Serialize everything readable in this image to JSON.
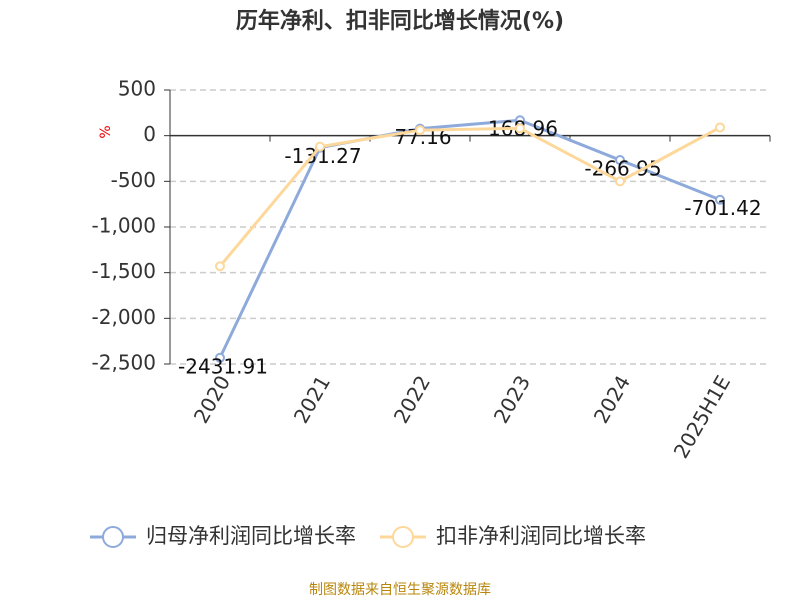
{
  "chart_data": {
    "type": "line",
    "title": "历年净利、扣非同比增长情况(%)",
    "y_label": "%",
    "categories": [
      "2020",
      "2021",
      "2022",
      "2023",
      "2024",
      "2025H1E"
    ],
    "series": [
      {
        "name": "归母净利润同比增长率",
        "color": "#8eaadb",
        "values": [
          -2431.91,
          -131.27,
          77.16,
          168.96,
          -266.95,
          -701.42
        ],
        "show_labels": true
      },
      {
        "name": "扣非净利润同比增长率",
        "color": "#fdd89a",
        "values": [
          -1430,
          -120,
          60,
          80,
          -500,
          90
        ],
        "show_labels": false
      }
    ],
    "ylim": [
      -2500,
      500
    ],
    "yticks": [
      500,
      0,
      -500,
      {
        "value": -1000,
        "label": "-1,000"
      },
      {
        "value": -1500,
        "label": "-1,500"
      },
      {
        "value": -2000,
        "label": "-2,000"
      },
      {
        "value": -2500,
        "label": "-2,500"
      }
    ],
    "grid": true,
    "legend": "bottom",
    "footer": "制图数据来自恒生聚源数据库"
  }
}
